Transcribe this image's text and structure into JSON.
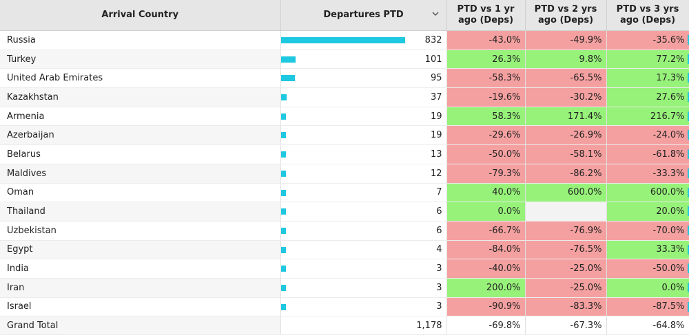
{
  "header": {
    "country": "Arrival Country",
    "departures": "Departures PTD",
    "vs1": "PTD vs 1 yr ago (Deps)",
    "vs2": "PTD vs 2 yrs ago (Deps)",
    "vs3": "PTD vs 3 yrs ago (Deps)"
  },
  "sort_icon": "chevron-down-icon",
  "colors": {
    "bar": "#1ec8e0",
    "positive": "#97f27a",
    "negative": "#f5a0a0"
  },
  "max_departures": 832,
  "rows": [
    {
      "country": "Russia",
      "departures": 832,
      "departures_label": "832",
      "vs1": "-43.0%",
      "vs2": "-49.9%",
      "vs3": "-35.6%"
    },
    {
      "country": "Turkey",
      "departures": 101,
      "departures_label": "101",
      "vs1": "26.3%",
      "vs2": "9.8%",
      "vs3": "77.2%"
    },
    {
      "country": "United Arab Emirates",
      "departures": 95,
      "departures_label": "95",
      "vs1": "-58.3%",
      "vs2": "-65.5%",
      "vs3": "17.3%"
    },
    {
      "country": "Kazakhstan",
      "departures": 37,
      "departures_label": "37",
      "vs1": "-19.6%",
      "vs2": "-30.2%",
      "vs3": "27.6%"
    },
    {
      "country": "Armenia",
      "departures": 19,
      "departures_label": "19",
      "vs1": "58.3%",
      "vs2": "171.4%",
      "vs3": "216.7%"
    },
    {
      "country": "Azerbaijan",
      "departures": 19,
      "departures_label": "19",
      "vs1": "-29.6%",
      "vs2": "-26.9%",
      "vs3": "-24.0%"
    },
    {
      "country": "Belarus",
      "departures": 13,
      "departures_label": "13",
      "vs1": "-50.0%",
      "vs2": "-58.1%",
      "vs3": "-61.8%"
    },
    {
      "country": "Maldives",
      "departures": 12,
      "departures_label": "12",
      "vs1": "-79.3%",
      "vs2": "-86.2%",
      "vs3": "-33.3%"
    },
    {
      "country": "Oman",
      "departures": 7,
      "departures_label": "7",
      "vs1": "40.0%",
      "vs2": "600.0%",
      "vs3": "600.0%"
    },
    {
      "country": "Thailand",
      "departures": 6,
      "departures_label": "6",
      "vs1": "0.0%",
      "vs2": "",
      "vs3": "20.0%"
    },
    {
      "country": "Uzbekistan",
      "departures": 6,
      "departures_label": "6",
      "vs1": "-66.7%",
      "vs2": "-76.9%",
      "vs3": "-70.0%"
    },
    {
      "country": "Egypt",
      "departures": 4,
      "departures_label": "4",
      "vs1": "-84.0%",
      "vs2": "-76.5%",
      "vs3": "33.3%"
    },
    {
      "country": "India",
      "departures": 3,
      "departures_label": "3",
      "vs1": "-40.0%",
      "vs2": "-25.0%",
      "vs3": "-50.0%"
    },
    {
      "country": "Iran",
      "departures": 3,
      "departures_label": "3",
      "vs1": "200.0%",
      "vs2": "-25.0%",
      "vs3": "0.0%"
    },
    {
      "country": "Israel",
      "departures": 3,
      "departures_label": "3",
      "vs1": "-90.9%",
      "vs2": "-83.3%",
      "vs3": "-87.5%"
    }
  ],
  "total": {
    "label": "Grand Total",
    "departures": "1,178",
    "vs1": "-69.8%",
    "vs2": "-67.3%",
    "vs3": "-64.8%"
  }
}
